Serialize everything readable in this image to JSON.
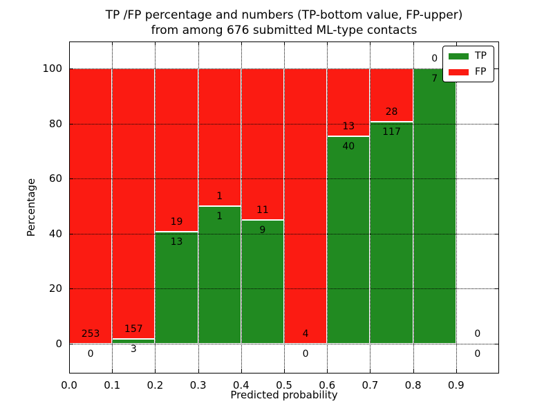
{
  "title": {
    "line1": "TP /FP percentage and numbers (TP-bottom value, FP-upper)",
    "line2": "from among 676 submitted ML-type contacts"
  },
  "axes": {
    "xlabel": "Predicted probability",
    "ylabel": "Percentage",
    "xticks": [
      "0.0",
      "0.1",
      "0.2",
      "0.3",
      "0.4",
      "0.5",
      "0.6",
      "0.7",
      "0.8",
      "0.9"
    ],
    "yticks": [
      "0",
      "20",
      "40",
      "60",
      "80",
      "100"
    ]
  },
  "legend": {
    "items": [
      {
        "label": "TP",
        "color": "#218a21"
      },
      {
        "label": "FP",
        "color": "#fb1b12"
      }
    ],
    "position": "upper right"
  },
  "chart_data": {
    "type": "bar",
    "stacked": true,
    "title": "TP /FP percentage and numbers (TP-bottom value, FP-upper) from among 676 submitted ML-type contacts",
    "xlabel": "Predicted probability",
    "ylabel": "Percentage",
    "categories": [
      "0.0-0.1",
      "0.1-0.2",
      "0.2-0.3",
      "0.3-0.4",
      "0.4-0.5",
      "0.5-0.6",
      "0.6-0.7",
      "0.7-0.8",
      "0.8-0.9",
      "0.9-1.0"
    ],
    "bin_start": [
      0.0,
      0.1,
      0.2,
      0.3,
      0.4,
      0.5,
      0.6,
      0.7,
      0.8,
      0.9
    ],
    "bin_width": 0.1,
    "series": [
      {
        "name": "TP",
        "color": "#218a21",
        "counts": [
          0,
          3,
          13,
          1,
          9,
          0,
          40,
          117,
          7,
          0
        ]
      },
      {
        "name": "FP",
        "color": "#fb1b12",
        "counts": [
          253,
          157,
          19,
          1,
          11,
          4,
          13,
          28,
          0,
          0
        ]
      }
    ],
    "tp_percent": [
      0.0,
      1.9,
      40.6,
      50.0,
      45.0,
      0.0,
      75.5,
      80.7,
      100.0,
      null
    ],
    "total_contacts": 676,
    "xlim": [
      0.0,
      1.0
    ],
    "ylim": [
      -10.8,
      109.8
    ],
    "xticks": [
      0.0,
      0.1,
      0.2,
      0.3,
      0.4,
      0.5,
      0.6,
      0.7,
      0.8,
      0.9
    ],
    "yticks": [
      0,
      20,
      40,
      60,
      80,
      100
    ],
    "grid": true,
    "grid_style": "dotted",
    "legend_position": "upper right"
  }
}
